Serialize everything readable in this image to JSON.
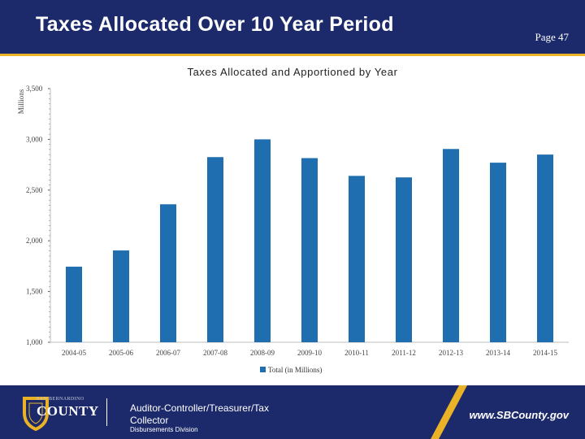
{
  "header": {
    "title": "Taxes Allocated Over 10 Year Period",
    "page_label": "Page 47"
  },
  "footer": {
    "logo_small_text": "SAN BERNARDINO",
    "logo_text": "COUNTY",
    "department": "Auditor-Controller/Treasurer/Tax Collector",
    "division": "Disbursements Division",
    "website": "www.SBCounty.gov"
  },
  "colors": {
    "brand": "#1c2a6b",
    "accent": "#e9b227",
    "bar": "#1f6fb0"
  },
  "chart_data": {
    "type": "bar",
    "title": "Taxes Allocated and Apportioned by Year",
    "ylabel": "Millions",
    "xlabel": "",
    "categories": [
      "2004-05",
      "2005-06",
      "2006-07",
      "2007-08",
      "2008-09",
      "2009-10",
      "2010-11",
      "2011-12",
      "2012-13",
      "2013-14",
      "2014-15"
    ],
    "series": [
      {
        "name": "Total (in Millions)",
        "values": [
          1745,
          1905,
          2360,
          2825,
          3000,
          2815,
          2640,
          2625,
          2905,
          2770,
          2850
        ]
      }
    ],
    "ylim": [
      1000,
      3500
    ],
    "yticks": [
      1000,
      1500,
      2000,
      2500,
      3000,
      3500
    ],
    "ytick_labels": [
      "1,000",
      "1,500",
      "2,000",
      "2,500",
      "3,000",
      "3,500"
    ],
    "grid": false,
    "legend": "bottom-center"
  }
}
